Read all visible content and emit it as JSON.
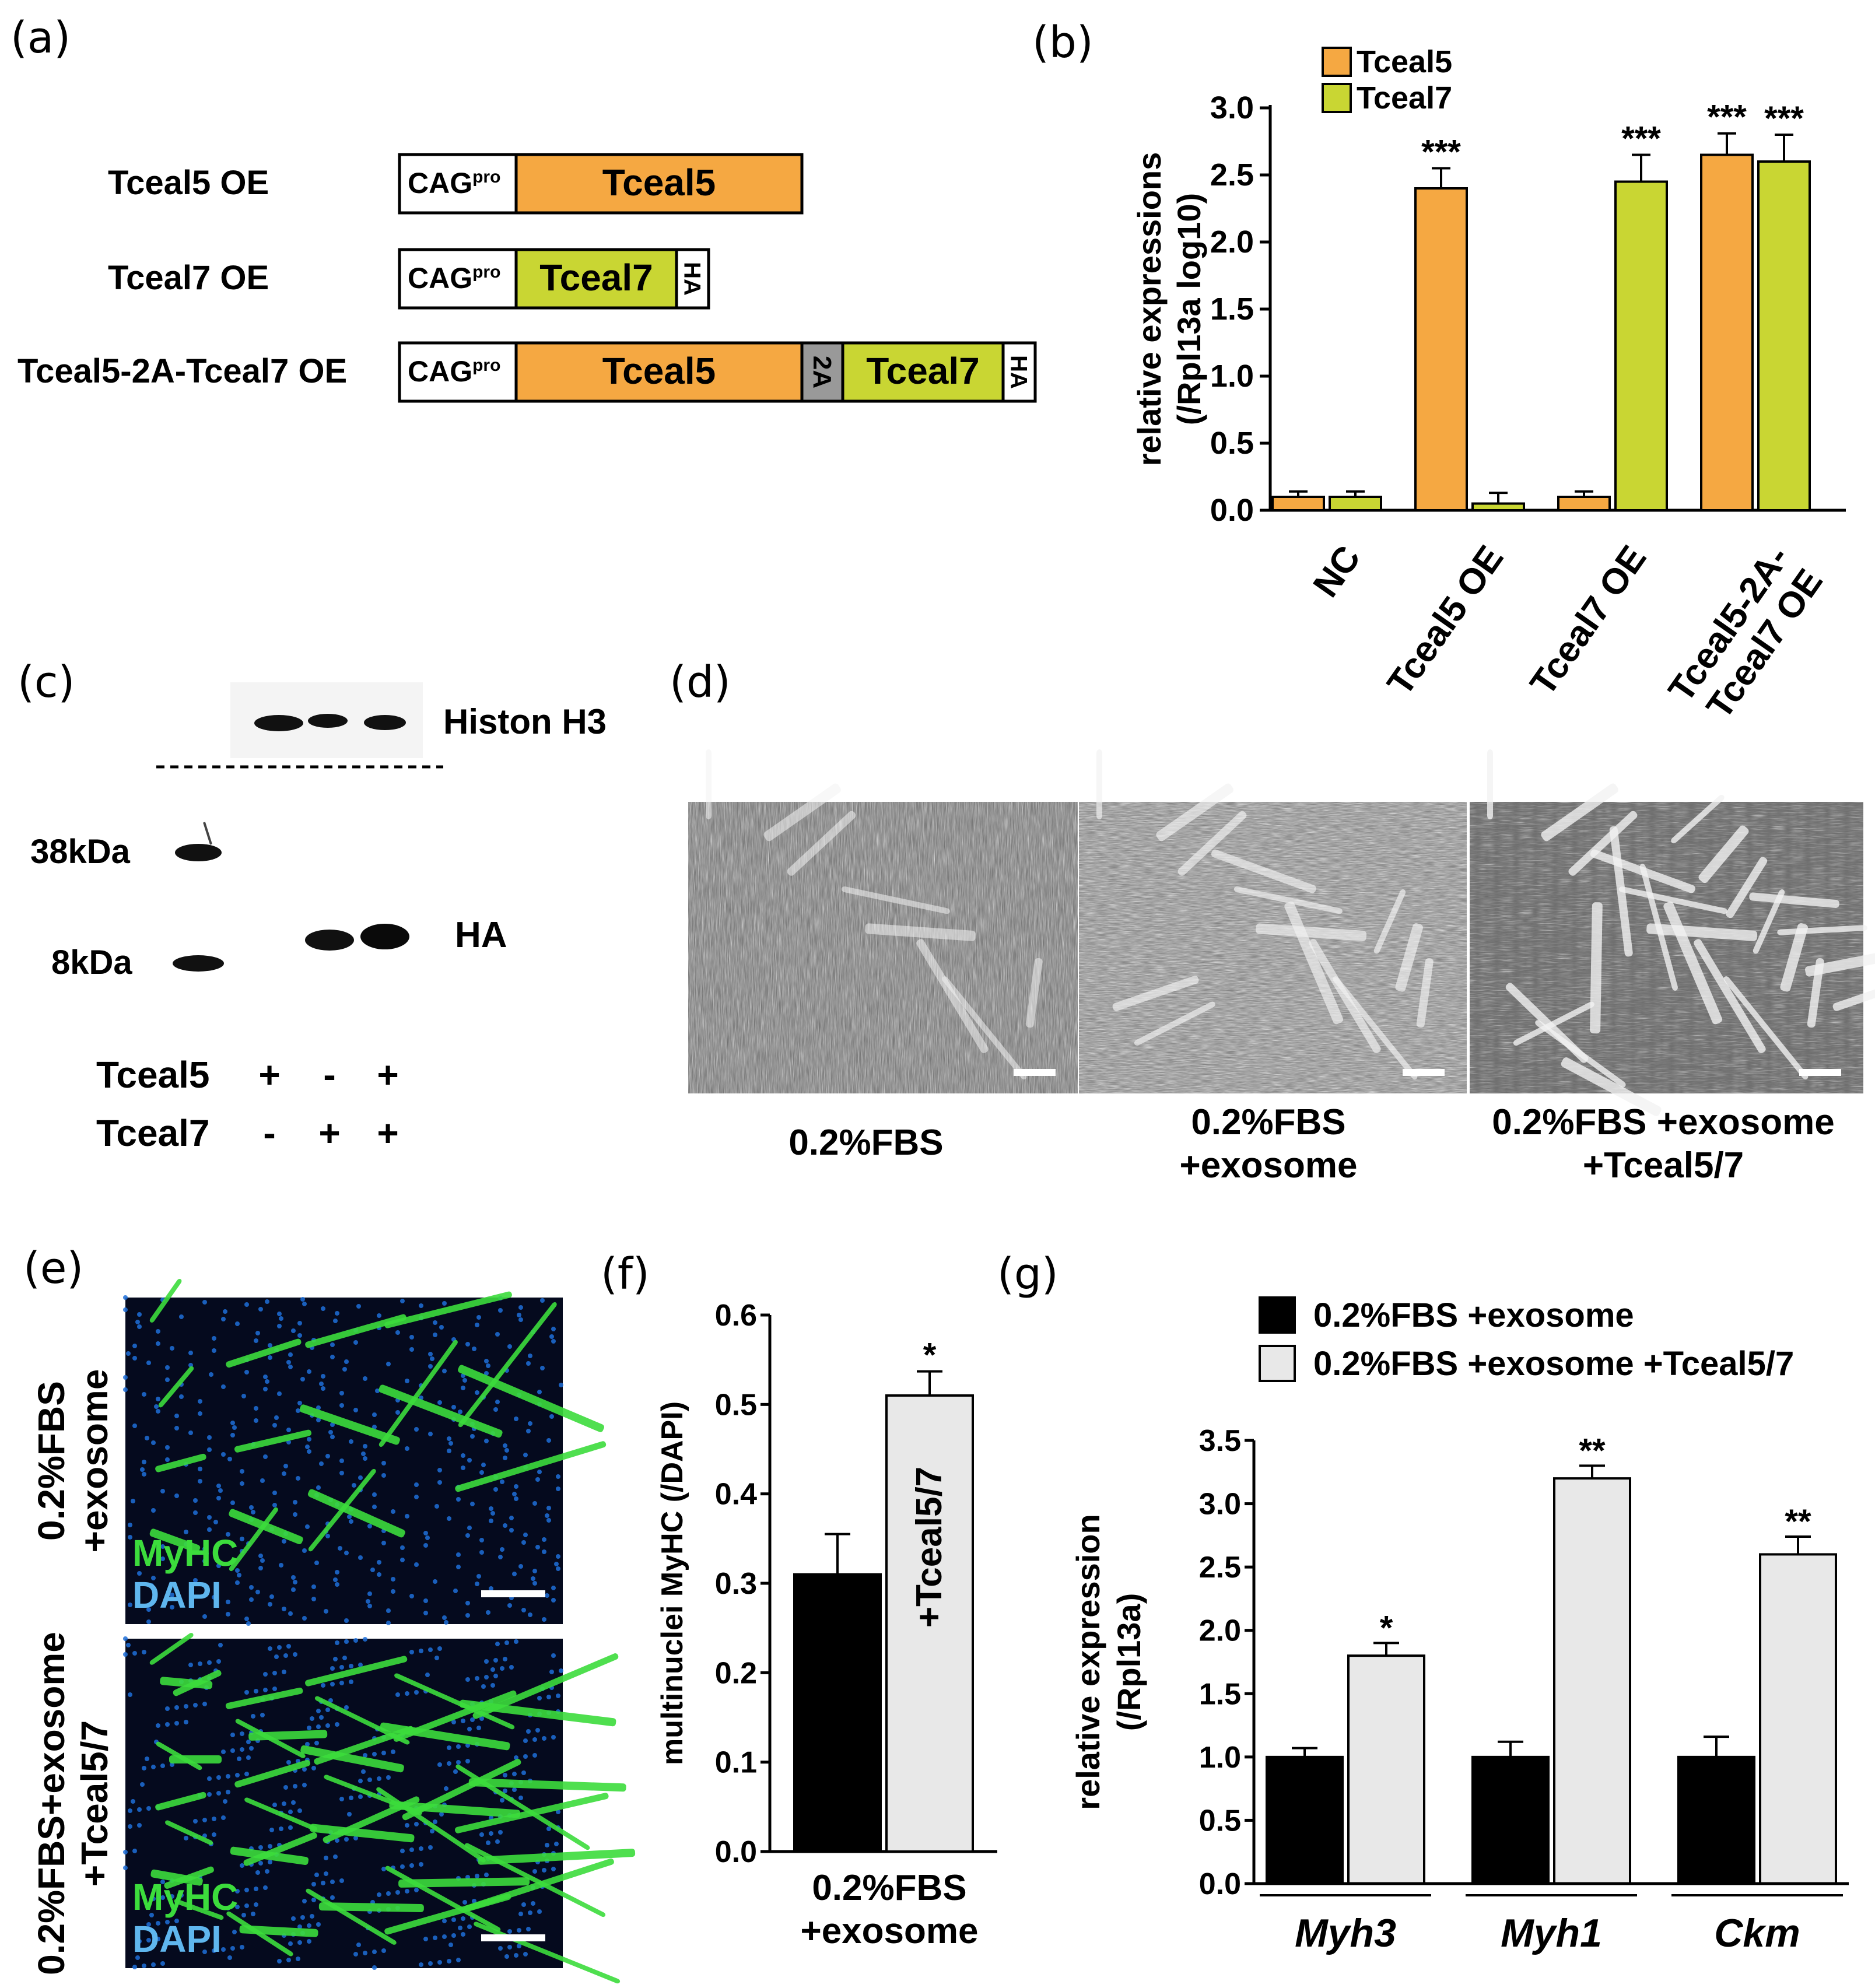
{
  "colors": {
    "tceal5": "#f5a842",
    "tceal7": "#c9d633",
    "black_bar": "#000000",
    "grey_bar": "#e8e8e8",
    "twoA": "#999999",
    "myhc": "#3cdc3c",
    "dapi": "#1e6fd8"
  },
  "panel_a": {
    "label": "(a)",
    "rows": [
      {
        "name": "Tceal5 OE",
        "promoter": "CAG",
        "sup": "pro",
        "genes": [
          "Tceal5"
        ],
        "tag": ""
      },
      {
        "name": "Tceal7 OE",
        "promoter": "CAG",
        "sup": "pro",
        "genes": [
          "Tceal7"
        ],
        "tag": "HA"
      },
      {
        "name": "Tceal5-2A-Tceal7 OE",
        "promoter": "CAG",
        "sup": "pro",
        "genes": [
          "Tceal5",
          "2A",
          "Tceal7"
        ],
        "tag": "HA"
      }
    ]
  },
  "panel_b": {
    "label": "(b)",
    "chart_data": {
      "type": "bar",
      "ylabel": "relative expressions\n(/Rpl13a log10)",
      "ylim": [
        0,
        3.0
      ],
      "yticks": [
        "0.0",
        "0.5",
        "1.0",
        "1.5",
        "2.0",
        "2.5",
        "3.0"
      ],
      "categories": [
        "NC",
        "Tceal5 OE",
        "Tceal7 OE",
        "Tceal5-2A-\nTceal7 OE"
      ],
      "series": [
        {
          "name": "Tceal5",
          "values": [
            0.1,
            2.4,
            0.1,
            2.65
          ],
          "errors": [
            0.04,
            0.15,
            0.04,
            0.16
          ],
          "sig": [
            "",
            "***",
            "",
            "***"
          ]
        },
        {
          "name": "Tceal7",
          "values": [
            0.1,
            0.05,
            2.45,
            2.6
          ],
          "errors": [
            0.04,
            0.08,
            0.2,
            0.2
          ],
          "sig": [
            "",
            "",
            "***",
            "***"
          ]
        }
      ],
      "legend": "top-left"
    }
  },
  "panel_c": {
    "label": "(c)",
    "histone_label": "Histon H3",
    "ha_label": "HA",
    "markers": [
      "38kDa",
      "8kDa"
    ],
    "rows": [
      {
        "name": "Tceal5",
        "values": [
          "+",
          "-",
          "+"
        ]
      },
      {
        "name": "Tceal7",
        "values": [
          "-",
          "+",
          "+"
        ]
      }
    ]
  },
  "panel_d": {
    "label": "(d)",
    "captions": [
      "0.2%FBS",
      "0.2%FBS\n+exosome",
      "0.2%FBS +exosome\n+Tceal5/7"
    ]
  },
  "panel_e": {
    "label": "(e)",
    "rows": [
      {
        "side": "0.2%FBS\n+exosome",
        "stain1": "MyHC",
        "stain2": "DAPI"
      },
      {
        "side": "0.2%FBS+exosome\n+Tceal5/7",
        "stain1": "MyHC",
        "stain2": "DAPI"
      }
    ]
  },
  "panel_f": {
    "label": "(f)",
    "chart_data": {
      "type": "bar",
      "ylabel": "multinuclei MyHC (/DAPI)",
      "ylim": [
        0,
        0.6
      ],
      "yticks": [
        "0.0",
        "0.1",
        "0.2",
        "0.3",
        "0.4",
        "0.5",
        "0.6"
      ],
      "bars": [
        {
          "value": 0.31,
          "error": 0.045,
          "inner_label": "",
          "sig": ""
        },
        {
          "value": 0.51,
          "error": 0.027,
          "inner_label": "+Tceal5/7",
          "sig": "*"
        }
      ],
      "xlabel": "0.2%FBS\n+exosome"
    }
  },
  "panel_g": {
    "label": "(g)",
    "chart_data": {
      "type": "bar",
      "ylabel": "relative expression\n(/Rpl13a)",
      "ylim": [
        0,
        3.5
      ],
      "yticks": [
        "0.0",
        "0.5",
        "1.0",
        "1.5",
        "2.0",
        "2.5",
        "3.0",
        "3.5"
      ],
      "categories": [
        "Myh3",
        "Myh1",
        "Ckm"
      ],
      "series": [
        {
          "name": "0.2%FBS +exosome",
          "values": [
            1.0,
            1.0,
            1.0
          ],
          "errors": [
            0.07,
            0.12,
            0.16
          ],
          "sig": [
            "",
            "",
            ""
          ]
        },
        {
          "name": "0.2%FBS +exosome +Tceal5/7",
          "values": [
            1.8,
            3.2,
            2.6
          ],
          "errors": [
            0.1,
            0.1,
            0.14
          ],
          "sig": [
            "*",
            "**",
            "**"
          ]
        }
      ],
      "legend": "top"
    }
  }
}
